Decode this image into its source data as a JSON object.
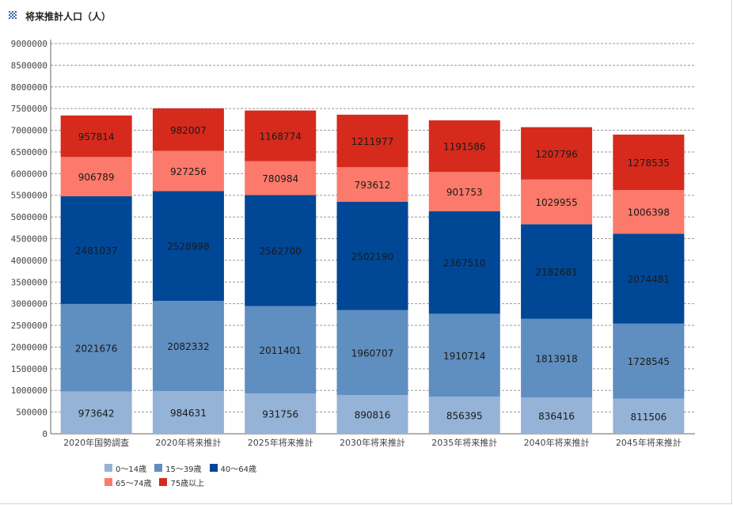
{
  "header": {
    "title": "将来推計人口（人）",
    "icon": "dotted-square-icon"
  },
  "chart_data": {
    "type": "bar",
    "stacked": true,
    "categories": [
      "2020年国勢調査",
      "2020年将来推計",
      "2025年将来推計",
      "2030年将来推計",
      "2035年将来推計",
      "2040年将来推計",
      "2045年将来推計"
    ],
    "series": [
      {
        "name": "0～14歳",
        "color": "#95b3d7",
        "values": [
          973642,
          984631,
          931756,
          890816,
          856395,
          836416,
          811506
        ]
      },
      {
        "name": "15～39歳",
        "color": "#5f8ec0",
        "values": [
          2021676,
          2082332,
          2011401,
          1960707,
          1910714,
          1813918,
          1728545
        ]
      },
      {
        "name": "40～64歳",
        "color": "#004796",
        "values": [
          2481037,
          2528998,
          2562700,
          2502190,
          2367510,
          2182681,
          2074481
        ]
      },
      {
        "name": "65～74歳",
        "color": "#fb7a6b",
        "values": [
          906789,
          927256,
          780984,
          793612,
          901753,
          1029955,
          1006398
        ]
      },
      {
        "name": "75歳以上",
        "color": "#d62a1d",
        "values": [
          957814,
          982007,
          1168774,
          1211977,
          1191586,
          1207796,
          1278535
        ]
      }
    ],
    "ylim": [
      0,
      9000000
    ],
    "ytick_step": 500000,
    "yticks": [
      "0",
      "500000",
      "1000000",
      "1500000",
      "2000000",
      "2500000",
      "3000000",
      "3500000",
      "4000000",
      "4500000",
      "5000000",
      "5500000",
      "6000000",
      "6500000",
      "7000000",
      "7500000",
      "8000000",
      "8500000",
      "9000000"
    ],
    "grid": true,
    "legend_position": "bottom-left"
  }
}
